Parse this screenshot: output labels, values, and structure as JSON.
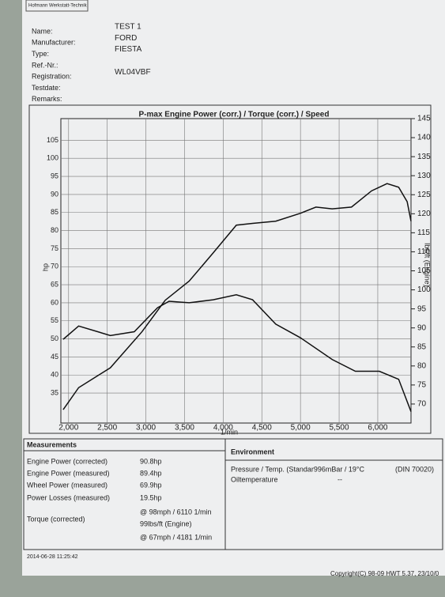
{
  "header": {
    "tab": "Hofmann Werkstatt-Technik",
    "fields": [
      {
        "label": "Name:",
        "value": "TEST 1"
      },
      {
        "label": "Manufacturer:",
        "value": "FORD"
      },
      {
        "label": "Type:",
        "value": "FIESTA"
      },
      {
        "label": "Ref.-Nr.:"
      },
      {
        "label": "Registration:",
        "value": "WL04VBF"
      },
      {
        "label": "Testdate:"
      },
      {
        "label": "Remarks:"
      }
    ]
  },
  "chart_data": {
    "type": "line",
    "title": "P-max Engine Power (corr.) / Torque (corr.) / Speed",
    "x_label": "1/min",
    "y_label": "hp",
    "y2_label": "lbs/ft (Engine)",
    "xlim": [
      1900,
      6430
    ],
    "xticks": [
      {
        "value": 2000,
        "label": "2,000"
      },
      {
        "value": 2500,
        "label": "2,500"
      },
      {
        "value": 3000,
        "label": "3,000"
      },
      {
        "value": 3500,
        "label": "3,500"
      },
      {
        "value": 4000,
        "label": "4,000"
      },
      {
        "value": 4500,
        "label": "4,500"
      },
      {
        "value": 5000,
        "label": "5,000"
      },
      {
        "value": 5500,
        "label": "5,500"
      },
      {
        "value": 6000,
        "label": "6,000"
      }
    ],
    "ylim": [
      26.7,
      111
    ],
    "yticks": [
      35,
      40,
      45,
      50,
      55,
      60,
      65,
      70,
      75,
      80,
      85,
      90,
      95,
      100,
      105
    ],
    "y2lim": [
      65,
      145
    ],
    "y2ticks": [
      70,
      75,
      80,
      85,
      90,
      95,
      100,
      105,
      110,
      115,
      120,
      125,
      130,
      135,
      140,
      145
    ],
    "grid": true,
    "series": [
      {
        "color": "#111111",
        "x": [
          1930,
          2130,
          2540,
          2950,
          3250,
          3560,
          3870,
          4170,
          4380,
          4680,
          5000,
          5200,
          5410,
          5660,
          5920,
          6120,
          6270,
          6380,
          6430
        ],
        "values": [
          30.4,
          36.5,
          42,
          52,
          60.7,
          66,
          73.8,
          81.5,
          82,
          82.6,
          84.8,
          86.5,
          86,
          86.5,
          91,
          93,
          92,
          88,
          82.6
        ]
      },
      {
        "color": "#111111",
        "axis": "y2",
        "x": [
          1930,
          2130,
          2540,
          2850,
          3150,
          3300,
          3560,
          3870,
          4170,
          4380,
          4680,
          5000,
          5410,
          5710,
          6020,
          6270,
          6430
        ],
        "values": [
          87,
          90.5,
          88,
          89,
          95.3,
          97,
          96.6,
          97.4,
          98.7,
          97.4,
          91,
          87.4,
          81.7,
          78.6,
          78.6,
          76.5,
          68
        ]
      }
    ]
  },
  "measurements": {
    "title": "Measurements",
    "rows": [
      {
        "label": "Engine Power (corrected)",
        "value": "90.8hp"
      },
      {
        "label": "Engine Power (measured)",
        "value": "89.4hp"
      },
      {
        "label": "Wheel Power (measured)",
        "value": "69.9hp"
      },
      {
        "label": "Power Losses (measured)",
        "value": "19.5hp"
      },
      {
        "value": "@ 98mph / 6110 1/min"
      },
      {
        "label": "Torque (corrected)",
        "value": "99lbs/ft (Engine)"
      },
      {
        "value": "@ 67mph / 4181 1/min"
      }
    ]
  },
  "environment": {
    "title": "Environment",
    "rows": [
      {
        "label": "Pressure / Temp. (Standar996mBar / 19°C",
        "value": "(DIN 70020)"
      },
      {
        "label": "Oiltemperature",
        "value": "--"
      }
    ]
  },
  "footer": {
    "timestamp": "2014-06-28 11:25:42",
    "copyright": "Copyright(C) 98-09 HWT 5.37, 23/10/0"
  }
}
